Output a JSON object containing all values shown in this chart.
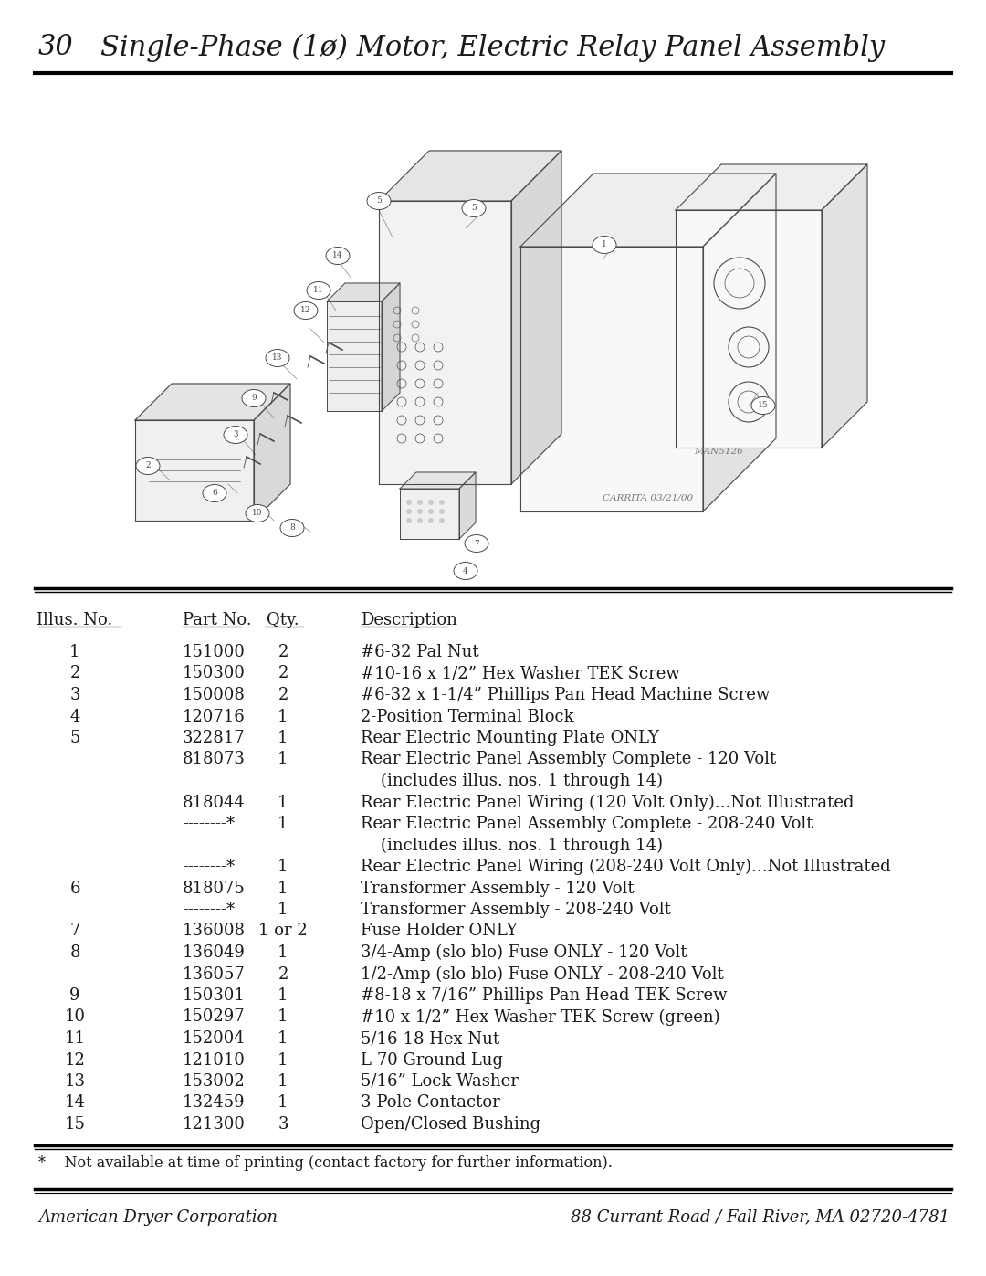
{
  "page_number": "30",
  "title": "Single-Phase (1ø) Motor, Electric Relay Panel Assembly",
  "rows": [
    {
      "illus": "1",
      "part": "151000",
      "qty": "2",
      "desc": "#6-32 Pal Nut"
    },
    {
      "illus": "2",
      "part": "150300",
      "qty": "2",
      "desc": "#10-16 x 1/2” Hex Washer TEK Screw"
    },
    {
      "illus": "3",
      "part": "150008",
      "qty": "2",
      "desc": "#6-32 x 1-1/4” Phillips Pan Head Machine Screw"
    },
    {
      "illus": "4",
      "part": "120716",
      "qty": "1",
      "desc": "2-Position Terminal Block"
    },
    {
      "illus": "5",
      "part": "322817",
      "qty": "1",
      "desc": "Rear Electric Mounting Plate ONLY"
    },
    {
      "illus": "",
      "part": "818073",
      "qty": "1",
      "desc": "Rear Electric Panel Assembly Complete - 120 Volt"
    },
    {
      "illus": "",
      "part": "",
      "qty": "",
      "desc": "(includes illus. nos. 1 through 14)"
    },
    {
      "illus": "",
      "part": "818044",
      "qty": "1",
      "desc": "Rear Electric Panel Wiring (120 Volt Only)...Not Illustrated"
    },
    {
      "illus": "",
      "part": "--------*",
      "qty": "1",
      "desc": "Rear Electric Panel Assembly Complete - 208-240 Volt"
    },
    {
      "illus": "",
      "part": "",
      "qty": "",
      "desc": "(includes illus. nos. 1 through 14)"
    },
    {
      "illus": "",
      "part": "--------*",
      "qty": "1",
      "desc": "Rear Electric Panel Wiring (208-240 Volt Only)...Not Illustrated"
    },
    {
      "illus": "6",
      "part": "818075",
      "qty": "1",
      "desc": "Transformer Assembly - 120 Volt"
    },
    {
      "illus": "",
      "part": "--------*",
      "qty": "1",
      "desc": "Transformer Assembly - 208-240 Volt"
    },
    {
      "illus": "7",
      "part": "136008",
      "qty": "1 or 2",
      "desc": "Fuse Holder ONLY"
    },
    {
      "illus": "8",
      "part": "136049",
      "qty": "1",
      "desc": "3/4-Amp (slo blo) Fuse ONLY - 120 Volt"
    },
    {
      "illus": "",
      "part": "136057",
      "qty": "2",
      "desc": "1/2-Amp (slo blo) Fuse ONLY - 208-240 Volt"
    },
    {
      "illus": "9",
      "part": "150301",
      "qty": "1",
      "desc": "#8-18 x 7/16” Phillips Pan Head TEK Screw"
    },
    {
      "illus": "10",
      "part": "150297",
      "qty": "1",
      "desc": "#10 x 1/2” Hex Washer TEK Screw (green)"
    },
    {
      "illus": "11",
      "part": "152004",
      "qty": "1",
      "desc": "5/16-18 Hex Nut"
    },
    {
      "illus": "12",
      "part": "121010",
      "qty": "1",
      "desc": "L-70 Ground Lug"
    },
    {
      "illus": "13",
      "part": "153002",
      "qty": "1",
      "desc": "5/16” Lock Washer"
    },
    {
      "illus": "14",
      "part": "132459",
      "qty": "1",
      "desc": "3-Pole Contactor"
    },
    {
      "illus": "15",
      "part": "121300",
      "qty": "3",
      "desc": "Open/Closed Bushing"
    }
  ],
  "footnote": "*    Not available at time of printing (contact factory for further information).",
  "footer_left": "American Dryer Corporation",
  "footer_right": "88 Currant Road / Fall River, MA 02720-4781",
  "bg_color": "#ffffff",
  "text_color": "#1a1a1a",
  "diag_label1": "MAN5126",
  "diag_label2": "CARRITA 03/21/00"
}
